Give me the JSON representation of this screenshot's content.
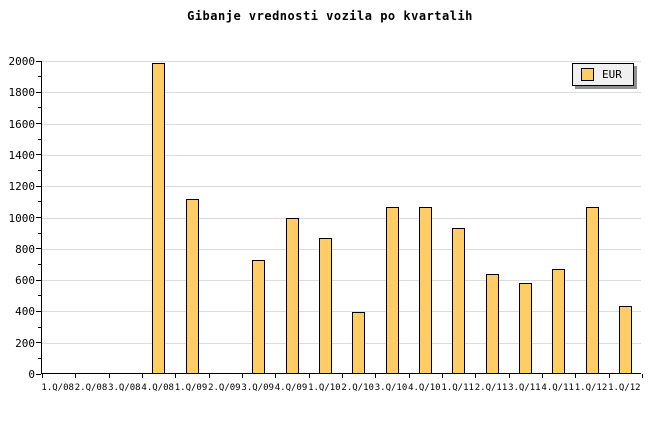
{
  "title": "Gibanje vrednosti vozila po kvartalih",
  "legend": {
    "label": "EUR"
  },
  "colors": {
    "background": "#FFFFFF",
    "bar_fill": "#FFCC66",
    "bar_border": "#000000",
    "grid": "#DCDCDC",
    "axis": "#000000",
    "legend_fill": "#F0F0F0",
    "legend_shadow": "#909090"
  },
  "chart_data": {
    "type": "bar",
    "title": "Gibanje vrednosti vozila po kvartalih",
    "series_name": "EUR",
    "categories": [
      "1.Q/08",
      "2.Q/08",
      "3.Q/08",
      "4.Q/08",
      "1.Q/09",
      "2.Q/09",
      "3.Q/09",
      "4.Q/09",
      "1.Q/10",
      "2.Q/10",
      "3.Q/10",
      "4.Q/10",
      "1.Q/11",
      "2.Q/11",
      "3.Q/11",
      "4.Q/11",
      "1.Q/12",
      "1.Q/12"
    ],
    "values": [
      null,
      null,
      null,
      1980,
      1110,
      null,
      720,
      990,
      860,
      390,
      1060,
      1060,
      925,
      635,
      575,
      665,
      1060,
      430
    ],
    "xlabel": "",
    "ylabel": "",
    "ylim": [
      0,
      2000
    ],
    "ytick_major": 200,
    "ytick_minor": 100,
    "grid": "horizontal-major",
    "legend_position": "top-right"
  }
}
